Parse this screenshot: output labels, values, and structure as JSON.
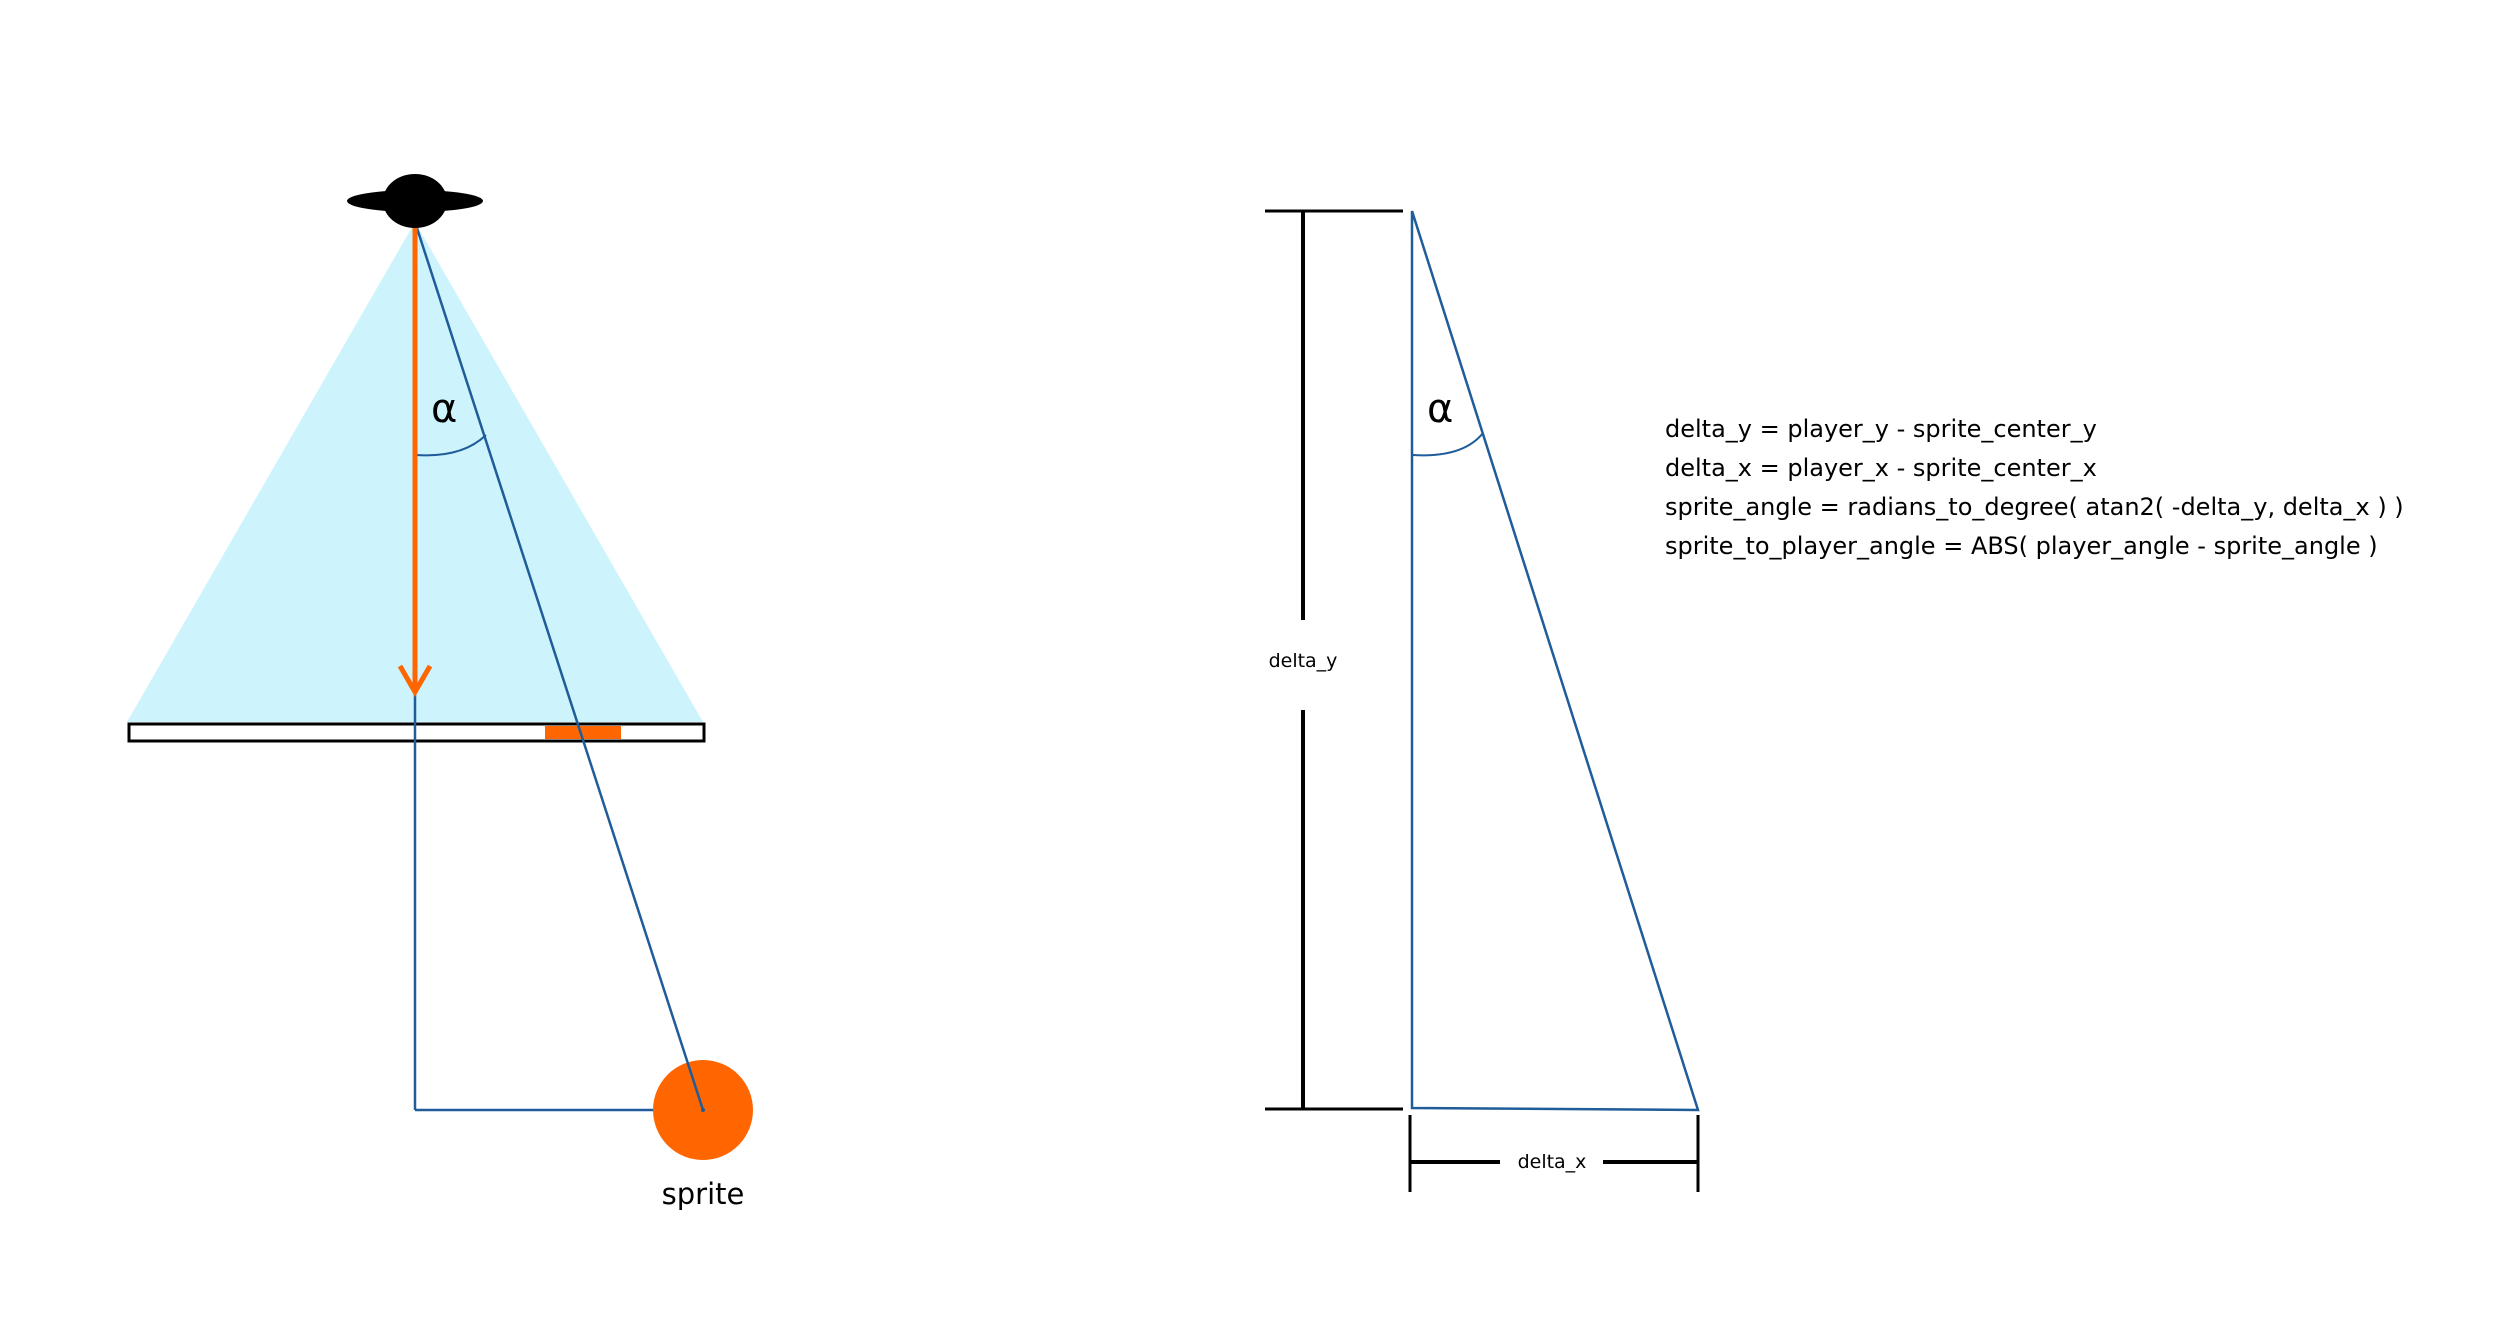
{
  "colors": {
    "background": "#ffffff",
    "fov_fill": "#cdf3fc",
    "ray_line": "#1f5c99",
    "direction_arrow": "#ff6600",
    "sprite": "#ff6600",
    "screen_hit": "#ff6600",
    "outline": "#000000"
  },
  "left_diagram": {
    "player_icon": "player-icon",
    "angle_label": "α",
    "sprite_label": "sprite"
  },
  "right_diagram": {
    "angle_label": "α",
    "delta_y_label": "delta_y",
    "delta_x_label": "delta_x"
  },
  "formulas": [
    "delta_y = player_y - sprite_center_y",
    "delta_x = player_x - sprite_center_x",
    "sprite_angle = radians_to_degree( atan2( -delta_y, delta_x ) )",
    "sprite_to_player_angle = ABS( player_angle - sprite_angle )"
  ]
}
